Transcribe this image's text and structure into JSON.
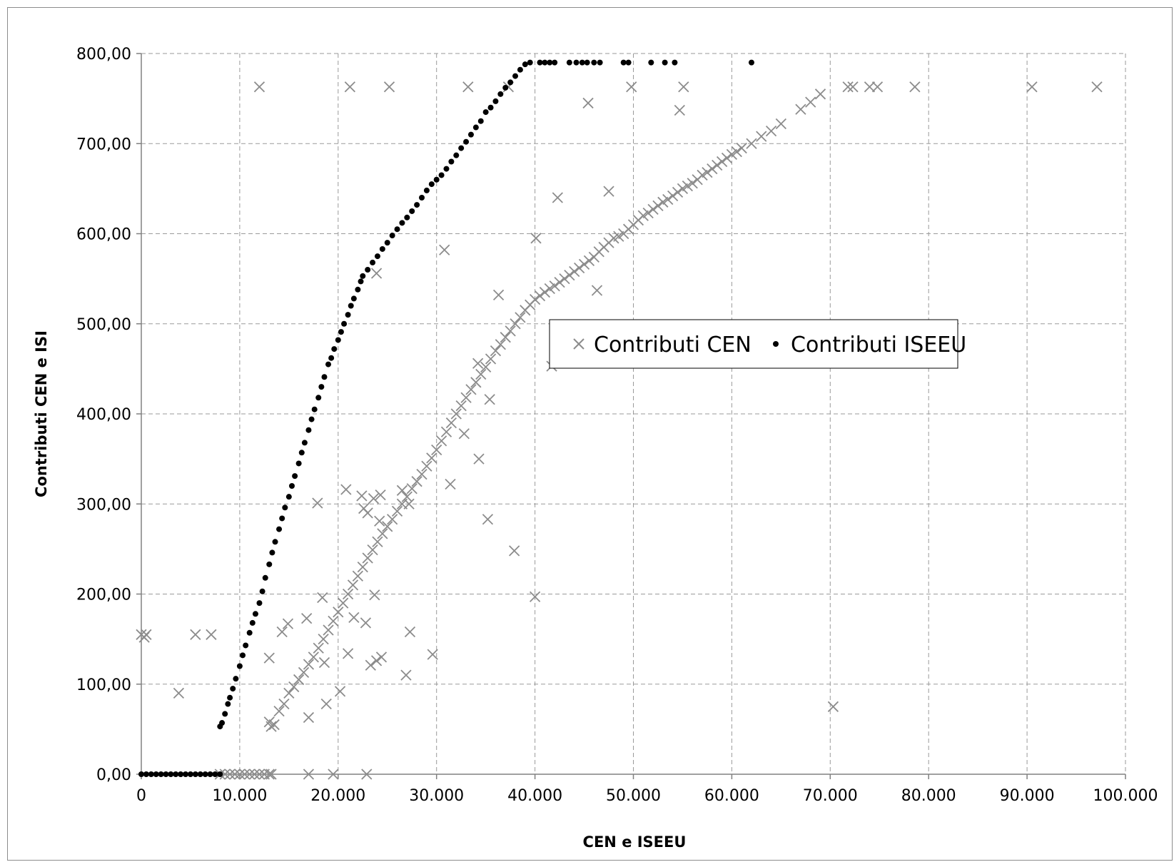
{
  "chart_data": {
    "type": "scatter",
    "xlabel": "CEN e ISEEU",
    "ylabel": "Contributi CEN e ISI",
    "xlim": [
      0,
      100000
    ],
    "ylim": [
      0,
      800
    ],
    "grid": true,
    "legend_position": "center-right",
    "x_ticks": [
      0,
      10000,
      20000,
      30000,
      40000,
      50000,
      60000,
      70000,
      80000,
      90000,
      100000
    ],
    "x_tick_labels": [
      "0",
      "10.000",
      "20.000",
      "30.000",
      "40.000",
      "50.000",
      "60.000",
      "70.000",
      "80.000",
      "90.000",
      "100.000"
    ],
    "y_ticks": [
      0,
      100,
      200,
      300,
      400,
      500,
      600,
      700,
      800
    ],
    "y_tick_labels": [
      "0,00",
      "100,00",
      "200,00",
      "300,00",
      "400,00",
      "500,00",
      "600,00",
      "700,00",
      "800,00"
    ],
    "series": [
      {
        "name": "Contributi CEN",
        "marker": "x",
        "color": "#8c8c8c",
        "points": [
          [
            0,
            155
          ],
          [
            500,
            155
          ],
          [
            300,
            152
          ],
          [
            3800,
            90
          ],
          [
            5500,
            155
          ],
          [
            7100,
            155
          ],
          [
            12000,
            763
          ],
          [
            21200,
            763
          ],
          [
            25200,
            763
          ],
          [
            33200,
            763
          ],
          [
            37300,
            763
          ],
          [
            49800,
            763
          ],
          [
            55100,
            763
          ],
          [
            71800,
            763
          ],
          [
            72300,
            763
          ],
          [
            74000,
            763
          ],
          [
            74800,
            763
          ],
          [
            78600,
            763
          ],
          [
            90500,
            763
          ],
          [
            97100,
            763
          ],
          [
            45400,
            745
          ],
          [
            54700,
            737
          ],
          [
            47500,
            647
          ],
          [
            42300,
            640
          ],
          [
            40100,
            595
          ],
          [
            30800,
            582
          ],
          [
            23900,
            556
          ],
          [
            36300,
            532
          ],
          [
            46300,
            537
          ],
          [
            42300,
            499
          ],
          [
            41700,
            453
          ],
          [
            34200,
            456
          ],
          [
            35400,
            416
          ],
          [
            32800,
            378
          ],
          [
            34300,
            350
          ],
          [
            31400,
            322
          ],
          [
            35200,
            283
          ],
          [
            37900,
            248
          ],
          [
            40000,
            197
          ],
          [
            17900,
            301
          ],
          [
            20800,
            316
          ],
          [
            22400,
            309
          ],
          [
            23600,
            306
          ],
          [
            24300,
            310
          ],
          [
            22600,
            295
          ],
          [
            23000,
            290
          ],
          [
            24200,
            281
          ],
          [
            26500,
            315
          ],
          [
            27200,
            300
          ],
          [
            21600,
            174
          ],
          [
            22800,
            168
          ],
          [
            23700,
            199
          ],
          [
            16800,
            173
          ],
          [
            14300,
            158
          ],
          [
            14900,
            167
          ],
          [
            18400,
            196
          ],
          [
            13000,
            129
          ],
          [
            18600,
            124
          ],
          [
            21000,
            134
          ],
          [
            23300,
            121
          ],
          [
            23900,
            126
          ],
          [
            24400,
            130
          ],
          [
            26900,
            110
          ],
          [
            27300,
            158
          ],
          [
            29600,
            133
          ],
          [
            18800,
            78
          ],
          [
            20200,
            92
          ],
          [
            17000,
            63
          ],
          [
            17000,
            0
          ],
          [
            19500,
            0
          ],
          [
            22900,
            0
          ],
          [
            70300,
            75
          ],
          [
            13200,
            53
          ],
          [
            14000,
            70
          ],
          [
            15000,
            90
          ],
          [
            16000,
            105
          ],
          [
            17000,
            122
          ],
          [
            18000,
            140
          ],
          [
            19000,
            160
          ],
          [
            20000,
            180
          ],
          [
            21000,
            200
          ],
          [
            22000,
            220
          ],
          [
            23000,
            240
          ],
          [
            24000,
            258
          ],
          [
            25000,
            275
          ],
          [
            26000,
            292
          ],
          [
            27000,
            308
          ],
          [
            28000,
            325
          ],
          [
            29000,
            342
          ],
          [
            30000,
            360
          ],
          [
            31000,
            380
          ],
          [
            32000,
            400
          ],
          [
            33000,
            418
          ],
          [
            34000,
            435
          ],
          [
            35000,
            452
          ],
          [
            36000,
            470
          ],
          [
            37000,
            485
          ],
          [
            38000,
            500
          ],
          [
            39000,
            515
          ],
          [
            40000,
            527
          ],
          [
            41000,
            535
          ],
          [
            42000,
            542
          ],
          [
            43000,
            550
          ],
          [
            44000,
            558
          ],
          [
            45000,
            566
          ],
          [
            46000,
            574
          ],
          [
            47000,
            585
          ],
          [
            48000,
            595
          ],
          [
            49000,
            600
          ],
          [
            50000,
            610
          ],
          [
            51000,
            620
          ],
          [
            52000,
            627
          ],
          [
            53000,
            635
          ],
          [
            54000,
            642
          ],
          [
            55000,
            650
          ],
          [
            56000,
            656
          ],
          [
            57000,
            665
          ],
          [
            58000,
            672
          ],
          [
            59000,
            680
          ],
          [
            60000,
            688
          ],
          [
            61000,
            695
          ],
          [
            62000,
            700
          ],
          [
            63000,
            708
          ],
          [
            64000,
            714
          ],
          [
            65000,
            722
          ],
          [
            67000,
            738
          ],
          [
            68000,
            746
          ],
          [
            69000,
            755
          ],
          [
            13500,
            55
          ],
          [
            14500,
            78
          ],
          [
            15500,
            97
          ],
          [
            16500,
            113
          ],
          [
            17500,
            130
          ],
          [
            18500,
            150
          ],
          [
            19500,
            170
          ],
          [
            20500,
            190
          ],
          [
            21500,
            210
          ],
          [
            22500,
            230
          ],
          [
            23500,
            249
          ],
          [
            24500,
            267
          ],
          [
            25500,
            283
          ],
          [
            26500,
            300
          ],
          [
            27500,
            317
          ],
          [
            28500,
            333
          ],
          [
            29500,
            351
          ],
          [
            30500,
            370
          ],
          [
            31500,
            390
          ],
          [
            32500,
            409
          ],
          [
            33500,
            427
          ],
          [
            34500,
            444
          ],
          [
            35500,
            461
          ],
          [
            36500,
            477
          ],
          [
            37500,
            492
          ],
          [
            38500,
            507
          ],
          [
            39500,
            521
          ],
          [
            40500,
            531
          ],
          [
            41500,
            539
          ],
          [
            42500,
            546
          ],
          [
            43500,
            554
          ],
          [
            44500,
            562
          ],
          [
            45500,
            570
          ],
          [
            46500,
            580
          ],
          [
            47500,
            590
          ],
          [
            48500,
            597
          ],
          [
            49500,
            605
          ],
          [
            50500,
            615
          ],
          [
            51500,
            623
          ],
          [
            52500,
            631
          ],
          [
            53500,
            638
          ],
          [
            54500,
            646
          ],
          [
            55500,
            653
          ],
          [
            56500,
            660
          ],
          [
            57500,
            668
          ],
          [
            58500,
            676
          ],
          [
            59500,
            684
          ],
          [
            60500,
            691
          ],
          [
            13000,
            0
          ],
          [
            13000,
            58
          ],
          [
            12500,
            0
          ],
          [
            12000,
            0
          ],
          [
            11500,
            0
          ],
          [
            11000,
            0
          ],
          [
            10500,
            0
          ],
          [
            10000,
            0
          ],
          [
            9500,
            0
          ],
          [
            9000,
            0
          ],
          [
            8500,
            0
          ],
          [
            8000,
            0
          ],
          [
            13200,
            0
          ]
        ]
      },
      {
        "name": "Contributi ISEEU",
        "marker": "dot",
        "color": "#000000",
        "points": [
          [
            0,
            0
          ],
          [
            500,
            0
          ],
          [
            1000,
            0
          ],
          [
            1500,
            0
          ],
          [
            2000,
            0
          ],
          [
            2500,
            0
          ],
          [
            3000,
            0
          ],
          [
            3500,
            0
          ],
          [
            4000,
            0
          ],
          [
            4500,
            0
          ],
          [
            5000,
            0
          ],
          [
            5500,
            0
          ],
          [
            6000,
            0
          ],
          [
            6500,
            0
          ],
          [
            7000,
            0
          ],
          [
            7500,
            0
          ],
          [
            8000,
            0
          ],
          [
            8000,
            53
          ],
          [
            8200,
            57
          ],
          [
            8500,
            67
          ],
          [
            8800,
            78
          ],
          [
            9000,
            85
          ],
          [
            9300,
            95
          ],
          [
            9600,
            106
          ],
          [
            10000,
            120
          ],
          [
            10300,
            132
          ],
          [
            10600,
            143
          ],
          [
            11000,
            157
          ],
          [
            11300,
            168
          ],
          [
            11600,
            178
          ],
          [
            12000,
            190
          ],
          [
            12300,
            203
          ],
          [
            12600,
            218
          ],
          [
            13000,
            233
          ],
          [
            13300,
            246
          ],
          [
            13600,
            258
          ],
          [
            14000,
            272
          ],
          [
            14300,
            284
          ],
          [
            14600,
            296
          ],
          [
            15000,
            308
          ],
          [
            15300,
            320
          ],
          [
            15600,
            331
          ],
          [
            16000,
            345
          ],
          [
            16300,
            357
          ],
          [
            16600,
            368
          ],
          [
            17000,
            382
          ],
          [
            17300,
            394
          ],
          [
            17600,
            405
          ],
          [
            18000,
            418
          ],
          [
            18300,
            430
          ],
          [
            18600,
            441
          ],
          [
            19000,
            455
          ],
          [
            19300,
            462
          ],
          [
            19600,
            472
          ],
          [
            20000,
            482
          ],
          [
            20300,
            491
          ],
          [
            20600,
            500
          ],
          [
            21000,
            510
          ],
          [
            21300,
            520
          ],
          [
            21600,
            528
          ],
          [
            22000,
            538
          ],
          [
            22300,
            547
          ],
          [
            22500,
            553
          ],
          [
            23000,
            560
          ],
          [
            23500,
            568
          ],
          [
            24000,
            575
          ],
          [
            24500,
            583
          ],
          [
            25000,
            590
          ],
          [
            25500,
            598
          ],
          [
            26000,
            605
          ],
          [
            26500,
            612
          ],
          [
            27000,
            618
          ],
          [
            27500,
            625
          ],
          [
            28000,
            632
          ],
          [
            28500,
            640
          ],
          [
            29000,
            648
          ],
          [
            29500,
            655
          ],
          [
            30000,
            660
          ],
          [
            30500,
            665
          ],
          [
            31000,
            672
          ],
          [
            31500,
            680
          ],
          [
            32000,
            687
          ],
          [
            32500,
            695
          ],
          [
            33000,
            702
          ],
          [
            33500,
            710
          ],
          [
            34000,
            718
          ],
          [
            34500,
            725
          ],
          [
            35000,
            735
          ],
          [
            35500,
            740
          ],
          [
            36000,
            747
          ],
          [
            36500,
            755
          ],
          [
            37000,
            762
          ],
          [
            37500,
            768
          ],
          [
            38000,
            775
          ],
          [
            38500,
            782
          ],
          [
            39000,
            788
          ],
          [
            39500,
            790
          ],
          [
            40500,
            790
          ],
          [
            41000,
            790
          ],
          [
            41500,
            790
          ],
          [
            42000,
            790
          ],
          [
            43500,
            790
          ],
          [
            44200,
            790
          ],
          [
            44800,
            790
          ],
          [
            45300,
            790
          ],
          [
            46000,
            790
          ],
          [
            46600,
            790
          ],
          [
            49000,
            790
          ],
          [
            49500,
            790
          ],
          [
            51800,
            790
          ],
          [
            53200,
            790
          ],
          [
            54200,
            790
          ],
          [
            62000,
            790
          ]
        ]
      }
    ]
  }
}
